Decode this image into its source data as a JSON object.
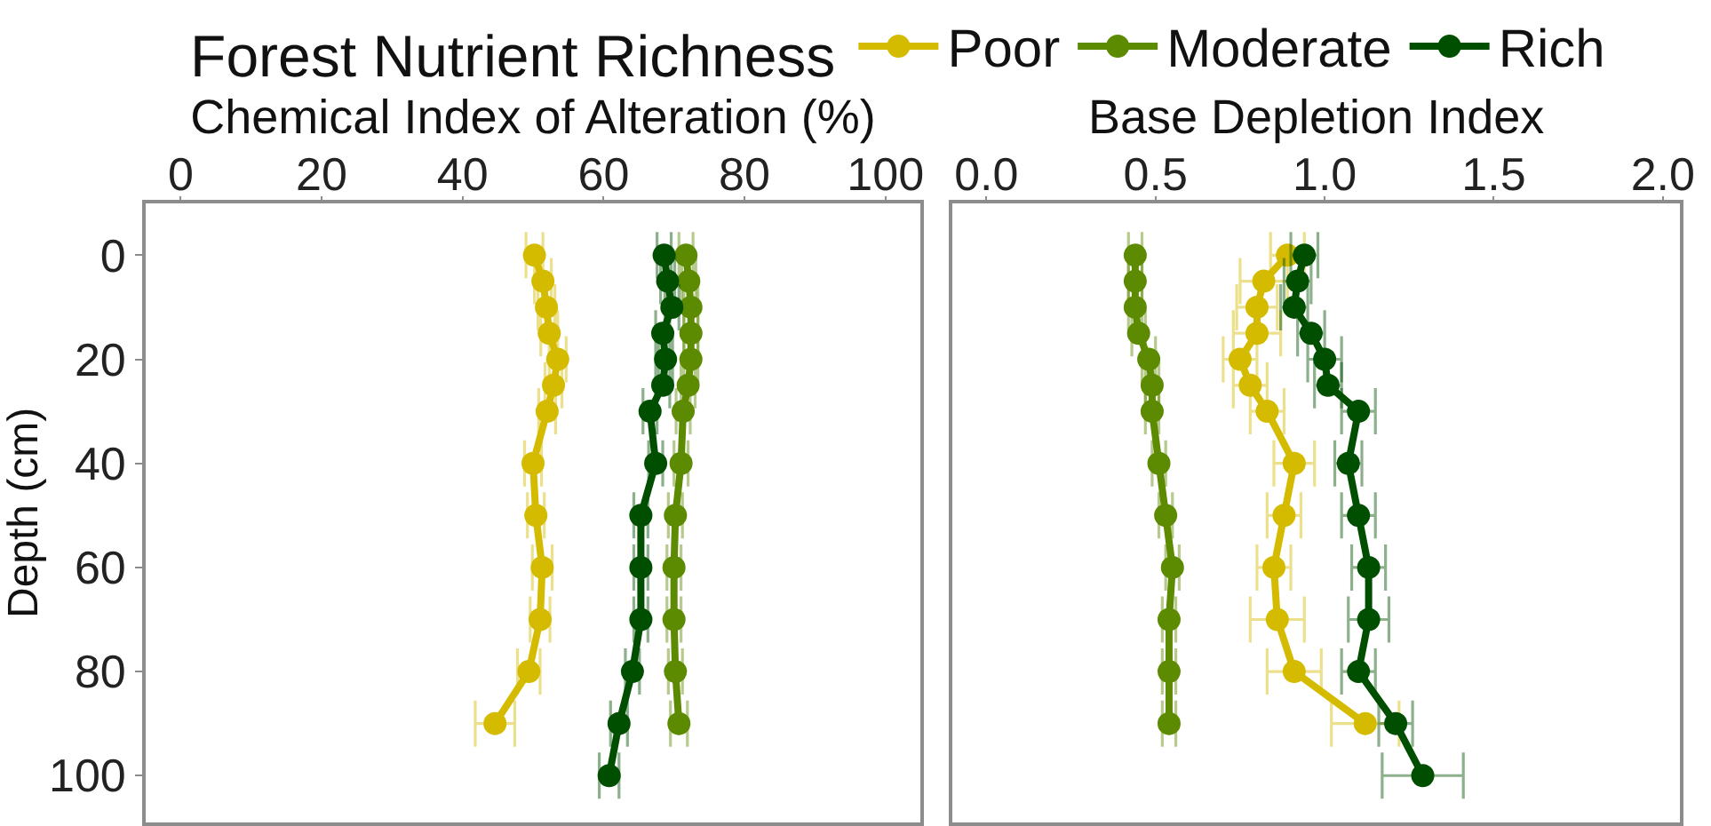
{
  "chart_data": [
    {
      "type": "line",
      "xlabel": "Chemical Index of Alteration (%)",
      "ylabel": "Depth (cm)",
      "legend_title": "Forest Nutrient Richness",
      "legend": "top",
      "marker": "circle",
      "line_style": "solid",
      "xlim": [
        -5,
        105
      ],
      "xticks": [
        0,
        20,
        40,
        60,
        80,
        100
      ],
      "ylim": [
        109,
        -10
      ],
      "yticks": [
        0,
        20,
        40,
        60,
        80,
        100
      ],
      "series": [
        {
          "name": "Poor",
          "color": "#d4bb00",
          "x": [
            50.2,
            51.4,
            51.9,
            52.3,
            53.5,
            52.9,
            52.0,
            50.0,
            50.4,
            51.3,
            51.0,
            49.4,
            44.6
          ],
          "values": [
            0,
            5,
            10,
            15,
            20,
            25,
            30,
            40,
            50,
            60,
            70,
            80,
            90
          ],
          "xerrors": [
            1.2,
            1.2,
            1.2,
            1.2,
            1.2,
            1.2,
            1.2,
            1.2,
            1.2,
            1.4,
            1.4,
            1.6,
            2.8
          ]
        },
        {
          "name": "Moderate",
          "color": "#5c8a00",
          "x": [
            71.7,
            72.1,
            72.4,
            72.4,
            72.4,
            72.0,
            71.3,
            71.0,
            70.2,
            70.0,
            70.0,
            70.2,
            70.7
          ],
          "values": [
            0,
            5,
            10,
            15,
            20,
            25,
            30,
            40,
            50,
            60,
            70,
            80,
            90
          ],
          "xerrors": [
            1.0,
            1.0,
            1.0,
            1.0,
            1.0,
            1.0,
            1.0,
            1.0,
            1.0,
            1.0,
            1.0,
            1.0,
            1.2
          ]
        },
        {
          "name": "Rich",
          "color": "#004f00",
          "x": [
            68.6,
            69.1,
            69.7,
            68.4,
            68.8,
            68.4,
            66.6,
            67.4,
            65.3,
            65.3,
            65.3,
            64.1,
            62.2,
            60.8
          ],
          "values": [
            0,
            5,
            10,
            15,
            20,
            25,
            30,
            40,
            50,
            60,
            70,
            80,
            90,
            100
          ],
          "xerrors": [
            1.0,
            1.0,
            1.0,
            1.0,
            1.0,
            1.0,
            1.0,
            1.0,
            1.0,
            1.0,
            1.0,
            1.0,
            1.2,
            1.4
          ]
        }
      ]
    },
    {
      "type": "line",
      "xlabel": "Base Depletion Index",
      "tick_labels": "x",
      "marker": "circle",
      "line_style": "solid",
      "xlim": [
        -0.1,
        2.05
      ],
      "xticks": [
        {
          "value": 0,
          "label": "0.0"
        },
        {
          "value": 0.5,
          "label": "0.5"
        },
        {
          "value": 1,
          "label": "1.0"
        },
        {
          "value": 1.5,
          "label": "1.5"
        },
        {
          "value": 2,
          "label": "2.0"
        }
      ],
      "ylim": [
        109,
        -10
      ],
      "series": [
        {
          "color": "#d4bb00",
          "x": [
            0.89,
            0.82,
            0.8,
            0.8,
            0.75,
            0.78,
            0.83,
            0.91,
            0.88,
            0.85,
            0.86,
            0.91,
            1.12
          ],
          "values": [
            0,
            5,
            10,
            15,
            20,
            25,
            30,
            40,
            50,
            60,
            70,
            80,
            90
          ],
          "xerrors": [
            0.05,
            0.07,
            0.06,
            0.07,
            0.05,
            0.05,
            0.05,
            0.06,
            0.05,
            0.05,
            0.08,
            0.08,
            0.1
          ]
        },
        {
          "color": "#5c8a00",
          "x": [
            0.44,
            0.44,
            0.44,
            0.45,
            0.48,
            0.49,
            0.49,
            0.51,
            0.53,
            0.55,
            0.54,
            0.54,
            0.54
          ],
          "values": [
            0,
            5,
            10,
            15,
            20,
            25,
            30,
            40,
            50,
            60,
            70,
            80,
            90
          ],
          "xerrors": [
            0.02,
            0.02,
            0.02,
            0.02,
            0.02,
            0.02,
            0.02,
            0.02,
            0.02,
            0.02,
            0.02,
            0.02,
            0.02
          ]
        },
        {
          "color": "#004f00",
          "x": [
            0.94,
            0.92,
            0.91,
            0.96,
            1.0,
            1.01,
            1.1,
            1.07,
            1.1,
            1.13,
            1.13,
            1.1,
            1.21,
            1.29
          ],
          "values": [
            0,
            5,
            10,
            15,
            20,
            25,
            30,
            40,
            50,
            60,
            70,
            80,
            90,
            100
          ],
          "xerrors": [
            0.04,
            0.04,
            0.04,
            0.04,
            0.05,
            0.04,
            0.05,
            0.04,
            0.05,
            0.05,
            0.06,
            0.05,
            0.05,
            0.12
          ]
        }
      ]
    }
  ]
}
